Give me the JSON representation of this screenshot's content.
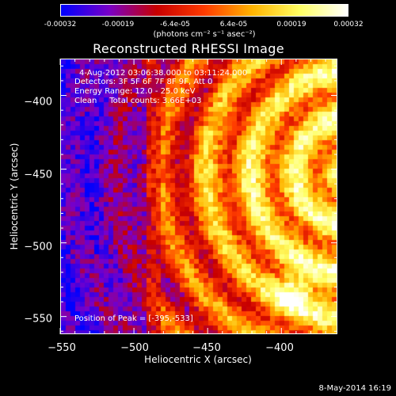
{
  "colorbar": {
    "tick_labels": [
      "-0.00032",
      "-0.00019",
      "-6.4e-05",
      "6.4e-05",
      "0.00019",
      "0.00032"
    ],
    "units": "(photons cm⁻² s⁻¹ asec⁻²)",
    "colors": [
      "#0000ff",
      "#7a00c8",
      "#c80000",
      "#ff3c00",
      "#ffb400",
      "#ffff64",
      "#ffffff"
    ]
  },
  "title": "Reconstructed RHESSI Image",
  "info": {
    "line1": "4-Aug-2012 03:06:38.000 to 03:11:24.000",
    "line2": "Detectors: 3F 5F 6F 7F 8F 9F, Att 0",
    "line3": "Energy Range: 12.0 - 25.0 keV",
    "line4": "Clean     Total counts: 3.66E+03",
    "peak": "Position of Peak = [-395,-533]"
  },
  "axes": {
    "xlabel": "Heliocentric X (arcsec)",
    "ylabel": "Heliocentric Y (arcsec)",
    "xticks": [
      "−550",
      "−500",
      "−450",
      "−400"
    ],
    "yticks": [
      "−400",
      "−450",
      "−500",
      "−550"
    ],
    "xlim": [
      -550,
      -362
    ],
    "ylim": [
      -562,
      -375
    ]
  },
  "datestamp": "8-May-2014 16:19"
}
